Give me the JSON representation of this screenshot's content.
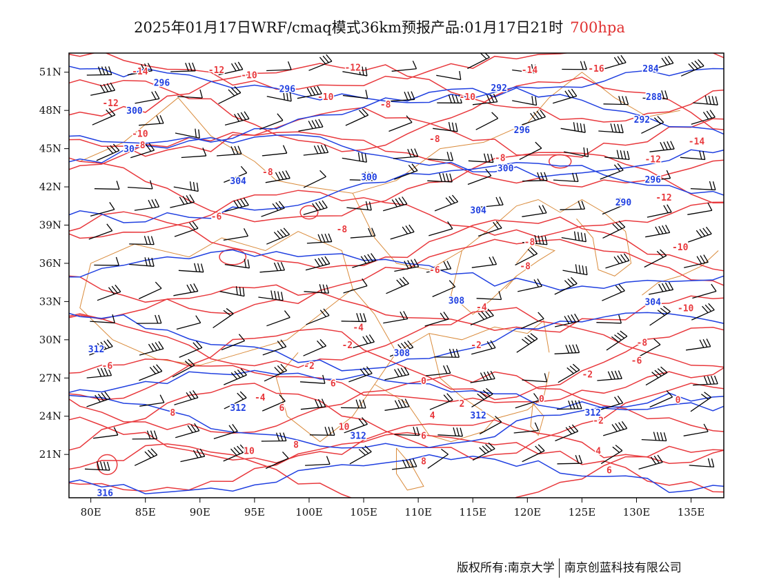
{
  "title": {
    "main": "2025年01月17日WRF/cmaq模式36km预报产品:01月17日21时",
    "level": "700hpa"
  },
  "map": {
    "lon_labels": [
      "80E",
      "85E",
      "90E",
      "95E",
      "100E",
      "105E",
      "110E",
      "115E",
      "120E",
      "125E",
      "130E",
      "135E"
    ],
    "lat_labels": [
      "51N",
      "48N",
      "45N",
      "42N",
      "39N",
      "36N",
      "33N",
      "30N",
      "27N",
      "24N",
      "21N"
    ],
    "lon_range": [
      78,
      138
    ],
    "lat_range": [
      17.6,
      52.5
    ],
    "colors": {
      "temperature": "#e8383c",
      "height": "#1f3fe0",
      "boundary": "#d98a3a",
      "wind_barb": "#000000",
      "frame": "#000000"
    },
    "height_labels": [
      {
        "text": "296",
        "lon": 86.5,
        "lat": 50.2
      },
      {
        "text": "296",
        "lon": 98.0,
        "lat": 49.7
      },
      {
        "text": "292",
        "lon": 117.4,
        "lat": 49.8
      },
      {
        "text": "284",
        "lon": 131.3,
        "lat": 51.3
      },
      {
        "text": "288",
        "lon": 131.6,
        "lat": 49.1
      },
      {
        "text": "292",
        "lon": 130.5,
        "lat": 47.3
      },
      {
        "text": "300",
        "lon": 84.0,
        "lat": 48.0
      },
      {
        "text": "296",
        "lon": 119.5,
        "lat": 46.5
      },
      {
        "text": "30",
        "lon": 83.5,
        "lat": 45.0
      },
      {
        "text": "300",
        "lon": 118.0,
        "lat": 43.5
      },
      {
        "text": "296",
        "lon": 131.5,
        "lat": 42.6
      },
      {
        "text": "304",
        "lon": 93.5,
        "lat": 42.5
      },
      {
        "text": "300",
        "lon": 105.5,
        "lat": 42.8
      },
      {
        "text": "290",
        "lon": 128.8,
        "lat": 40.8
      },
      {
        "text": "304",
        "lon": 115.5,
        "lat": 40.2
      },
      {
        "text": "308",
        "lon": 113.5,
        "lat": 33.1
      },
      {
        "text": "304",
        "lon": 131.5,
        "lat": 33.0
      },
      {
        "text": "312",
        "lon": 80.5,
        "lat": 29.3
      },
      {
        "text": "308",
        "lon": 108.5,
        "lat": 29.0
      },
      {
        "text": "312",
        "lon": 93.5,
        "lat": 24.7
      },
      {
        "text": "312",
        "lon": 115.5,
        "lat": 24.1
      },
      {
        "text": "312",
        "lon": 126.0,
        "lat": 24.3
      },
      {
        "text": "312",
        "lon": 104.5,
        "lat": 22.5
      },
      {
        "text": "316",
        "lon": 81.3,
        "lat": 18.0
      }
    ],
    "temp_labels": [
      {
        "text": "-14",
        "lon": 84.5,
        "lat": 51.1
      },
      {
        "text": "-12",
        "lon": 91.5,
        "lat": 51.2
      },
      {
        "text": "-10",
        "lon": 94.5,
        "lat": 50.8
      },
      {
        "text": "-12",
        "lon": 104.0,
        "lat": 51.4
      },
      {
        "text": "-14",
        "lon": 120.2,
        "lat": 51.2
      },
      {
        "text": "-16",
        "lon": 126.3,
        "lat": 51.3
      },
      {
        "text": "-12",
        "lon": 81.8,
        "lat": 48.6
      },
      {
        "text": "-10",
        "lon": 101.5,
        "lat": 49.1
      },
      {
        "text": "-10",
        "lon": 114.5,
        "lat": 49.1
      },
      {
        "text": "-8",
        "lon": 107.0,
        "lat": 48.5
      },
      {
        "text": "-10",
        "lon": 84.5,
        "lat": 46.2
      },
      {
        "text": "-8",
        "lon": 84.5,
        "lat": 45.3
      },
      {
        "text": "-8",
        "lon": 111.5,
        "lat": 45.8
      },
      {
        "text": "-14",
        "lon": 135.5,
        "lat": 45.6
      },
      {
        "text": "-8",
        "lon": 117.5,
        "lat": 44.3
      },
      {
        "text": "-12",
        "lon": 131.5,
        "lat": 44.2
      },
      {
        "text": "-8",
        "lon": 96.2,
        "lat": 43.2
      },
      {
        "text": "-12",
        "lon": 132.5,
        "lat": 41.2
      },
      {
        "text": "-6",
        "lon": 91.5,
        "lat": 39.7
      },
      {
        "text": "-8",
        "lon": 103.0,
        "lat": 38.7
      },
      {
        "text": "-8",
        "lon": 120.2,
        "lat": 37.7
      },
      {
        "text": "-10",
        "lon": 134.0,
        "lat": 37.3
      },
      {
        "text": "-6",
        "lon": 111.5,
        "lat": 35.5
      },
      {
        "text": "-8",
        "lon": 119.8,
        "lat": 35.8
      },
      {
        "text": "-4",
        "lon": 115.8,
        "lat": 32.6
      },
      {
        "text": "-10",
        "lon": 134.5,
        "lat": 32.5
      },
      {
        "text": "-4",
        "lon": 104.5,
        "lat": 31.0
      },
      {
        "text": "-2",
        "lon": 103.5,
        "lat": 29.6
      },
      {
        "text": "-2",
        "lon": 115.3,
        "lat": 29.6
      },
      {
        "text": "-8",
        "lon": 130.5,
        "lat": 29.8
      },
      {
        "text": "-6",
        "lon": 130.0,
        "lat": 28.4
      },
      {
        "text": "-6",
        "lon": 81.5,
        "lat": 28.0
      },
      {
        "text": "-2",
        "lon": 100.0,
        "lat": 28.0
      },
      {
        "text": "-2",
        "lon": 125.5,
        "lat": 27.3
      },
      {
        "text": "6",
        "lon": 102.2,
        "lat": 26.6
      },
      {
        "text": "0",
        "lon": 110.5,
        "lat": 26.8
      },
      {
        "text": "-4",
        "lon": 95.5,
        "lat": 25.5
      },
      {
        "text": "0",
        "lon": 121.3,
        "lat": 25.4
      },
      {
        "text": "0",
        "lon": 133.8,
        "lat": 25.3
      },
      {
        "text": "6",
        "lon": 97.5,
        "lat": 24.7
      },
      {
        "text": "2",
        "lon": 114.0,
        "lat": 25.0
      },
      {
        "text": "8",
        "lon": 87.5,
        "lat": 24.3
      },
      {
        "text": "4",
        "lon": 111.3,
        "lat": 24.1
      },
      {
        "text": "-2",
        "lon": 126.5,
        "lat": 23.7
      },
      {
        "text": "10",
        "lon": 103.2,
        "lat": 23.2
      },
      {
        "text": "6",
        "lon": 110.5,
        "lat": 22.5
      },
      {
        "text": "8",
        "lon": 98.8,
        "lat": 21.8
      },
      {
        "text": "10",
        "lon": 94.5,
        "lat": 21.3
      },
      {
        "text": "4",
        "lon": 126.5,
        "lat": 21.3
      },
      {
        "text": "8",
        "lon": 110.5,
        "lat": 20.5
      },
      {
        "text": "6",
        "lon": 127.5,
        "lat": 19.8
      }
    ]
  },
  "footer": {
    "left": "版权所有:南京大学",
    "right": "南京创蓝科技有限公司"
  }
}
